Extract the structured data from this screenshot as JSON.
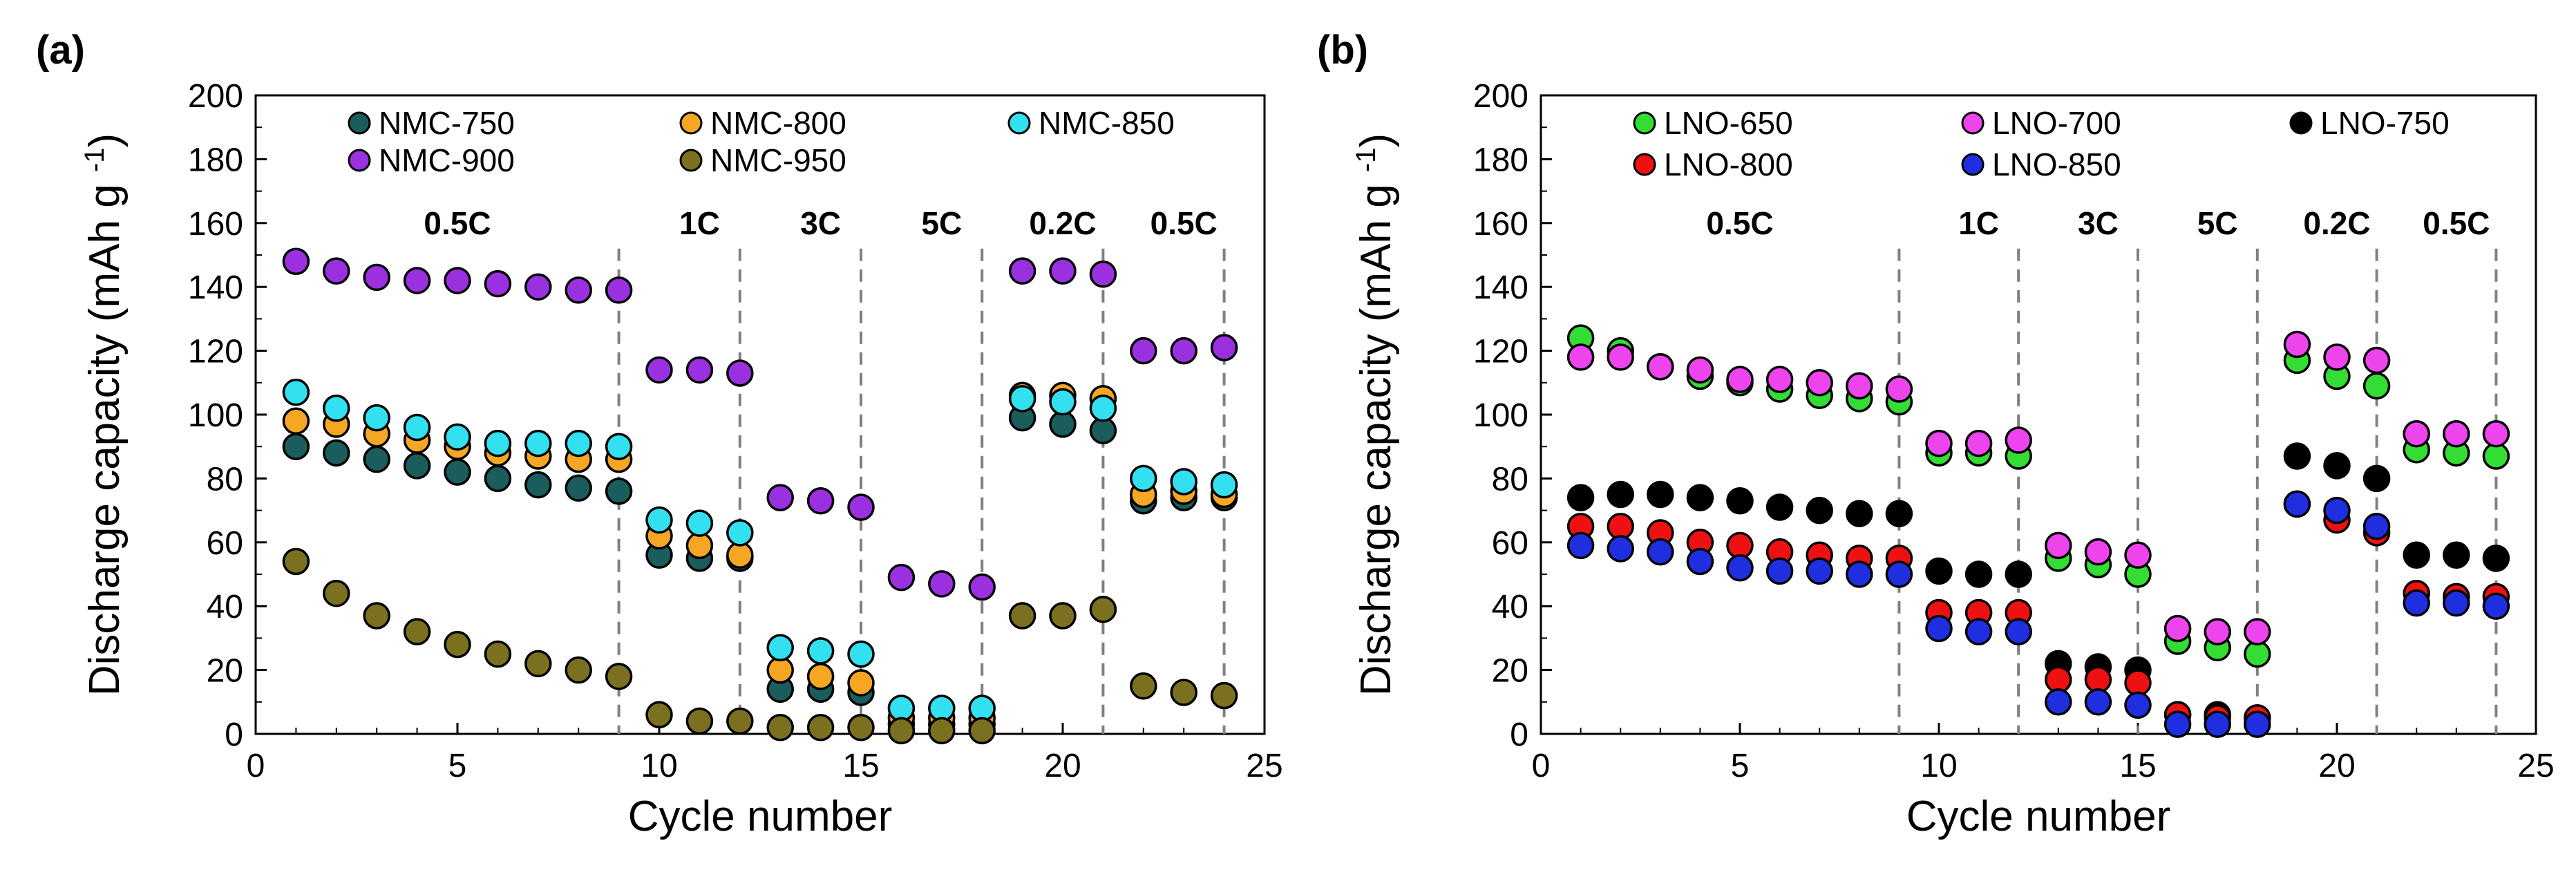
{
  "chart_data": [
    {
      "type": "scatter",
      "panel_label": "(a)",
      "xlabel": "Cycle number",
      "ylabel": "Discharge capacity (mAh g",
      "ylabel_sup": "-1",
      "ylabel_close": ")",
      "xlim": [
        0,
        25
      ],
      "ylim": [
        0,
        200
      ],
      "xticks": [
        0,
        5,
        10,
        15,
        20,
        25
      ],
      "yticks": [
        0,
        20,
        40,
        60,
        80,
        100,
        120,
        140,
        160,
        180,
        200
      ],
      "grid": false,
      "legend_position": "top",
      "rate_regions": [
        {
          "label": "0.5C",
          "start": 0,
          "end": 9
        },
        {
          "label": "1C",
          "start": 9,
          "end": 12
        },
        {
          "label": "3C",
          "start": 12,
          "end": 15
        },
        {
          "label": "5C",
          "start": 15,
          "end": 18
        },
        {
          "label": "0.2C",
          "start": 18,
          "end": 21
        },
        {
          "label": "0.5C",
          "start": 21,
          "end": 24
        }
      ],
      "dividers": [
        9,
        12,
        15,
        18,
        21,
        24
      ],
      "x": [
        1,
        2,
        3,
        4,
        5,
        6,
        7,
        8,
        9,
        10,
        11,
        12,
        13,
        14,
        15,
        16,
        17,
        18,
        19,
        20,
        21,
        22,
        23,
        24
      ],
      "series": [
        {
          "name": "NMC-750",
          "color": "#1b5c5c",
          "values": [
            90,
            88,
            86,
            84,
            82,
            80,
            78,
            77,
            76,
            56,
            55,
            55,
            14,
            14,
            13,
            3,
            3,
            3,
            99,
            97,
            95,
            73,
            74,
            74
          ]
        },
        {
          "name": "NMC-800",
          "color": "#f5a623",
          "values": [
            98,
            97,
            94,
            92,
            90,
            88,
            87,
            86,
            86,
            62,
            59,
            56,
            20,
            18,
            16,
            5,
            5,
            5,
            106,
            106,
            105,
            75,
            76,
            75
          ]
        },
        {
          "name": "NMC-850",
          "color": "#33e0f0",
          "values": [
            107,
            102,
            99,
            96,
            93,
            91,
            91,
            91,
            90,
            67,
            66,
            63,
            27,
            26,
            25,
            8,
            8,
            8,
            105,
            104,
            102,
            80,
            79,
            78
          ]
        },
        {
          "name": "NMC-900",
          "color": "#9b30e0",
          "values": [
            148,
            145,
            143,
            142,
            142,
            141,
            140,
            139,
            139,
            114,
            114,
            113,
            74,
            73,
            71,
            49,
            47,
            46,
            145,
            145,
            144,
            120,
            120,
            121
          ]
        },
        {
          "name": "NMC-950",
          "color": "#7a7020",
          "values": [
            54,
            44,
            37,
            32,
            28,
            25,
            22,
            20,
            18,
            6,
            4,
            4,
            2,
            2,
            2,
            1,
            1,
            1,
            37,
            37,
            39,
            15,
            13,
            12
          ]
        }
      ]
    },
    {
      "type": "scatter",
      "panel_label": "(b)",
      "xlabel": "Cycle number",
      "ylabel": "Discharge capacity (mAh g",
      "ylabel_sup": "-1",
      "ylabel_close": ")",
      "xlim": [
        0,
        25
      ],
      "ylim": [
        0,
        200
      ],
      "xticks": [
        0,
        5,
        10,
        15,
        20,
        25
      ],
      "yticks": [
        0,
        20,
        40,
        60,
        80,
        100,
        120,
        140,
        160,
        180,
        200
      ],
      "grid": false,
      "legend_position": "top",
      "rate_regions": [
        {
          "label": "0.5C",
          "start": 0,
          "end": 9
        },
        {
          "label": "1C",
          "start": 9,
          "end": 12
        },
        {
          "label": "3C",
          "start": 12,
          "end": 15
        },
        {
          "label": "5C",
          "start": 15,
          "end": 18
        },
        {
          "label": "0.2C",
          "start": 18,
          "end": 21
        },
        {
          "label": "0.5C",
          "start": 21,
          "end": 24
        }
      ],
      "dividers": [
        9,
        12,
        15,
        18,
        21,
        24
      ],
      "x": [
        1,
        2,
        3,
        4,
        5,
        6,
        7,
        8,
        9,
        10,
        11,
        12,
        13,
        14,
        15,
        16,
        17,
        18,
        19,
        20,
        21,
        22,
        23,
        24
      ],
      "series": [
        {
          "name": "LNO-650",
          "color": "#33dd33",
          "values": [
            124,
            120,
            115,
            112,
            110,
            108,
            106,
            105,
            104,
            88,
            88,
            87,
            55,
            53,
            50,
            29,
            27,
            25,
            117,
            112,
            109,
            89,
            88,
            87
          ]
        },
        {
          "name": "LNO-700",
          "color": "#ee44ee",
          "values": [
            118,
            118,
            115,
            114,
            111,
            111,
            110,
            109,
            108,
            91,
            91,
            92,
            59,
            57,
            56,
            33,
            32,
            32,
            122,
            118,
            117,
            94,
            94,
            94
          ]
        },
        {
          "name": "LNO-750",
          "color": "#000000",
          "values": [
            74,
            75,
            75,
            74,
            73,
            71,
            70,
            69,
            69,
            51,
            50,
            50,
            22,
            21,
            20,
            6,
            6,
            5,
            87,
            84,
            80,
            56,
            56,
            55
          ]
        },
        {
          "name": "LNO-800",
          "color": "#ee1111",
          "values": [
            65,
            65,
            63,
            60,
            59,
            57,
            56,
            55,
            55,
            38,
            38,
            38,
            17,
            17,
            16,
            6,
            5,
            5,
            72,
            67,
            63,
            44,
            43,
            43
          ]
        },
        {
          "name": "LNO-850",
          "color": "#1f2fe0",
          "values": [
            59,
            58,
            57,
            54,
            52,
            51,
            51,
            50,
            50,
            33,
            32,
            32,
            10,
            10,
            9,
            3,
            3,
            3,
            72,
            70,
            65,
            41,
            41,
            40
          ]
        }
      ]
    }
  ]
}
